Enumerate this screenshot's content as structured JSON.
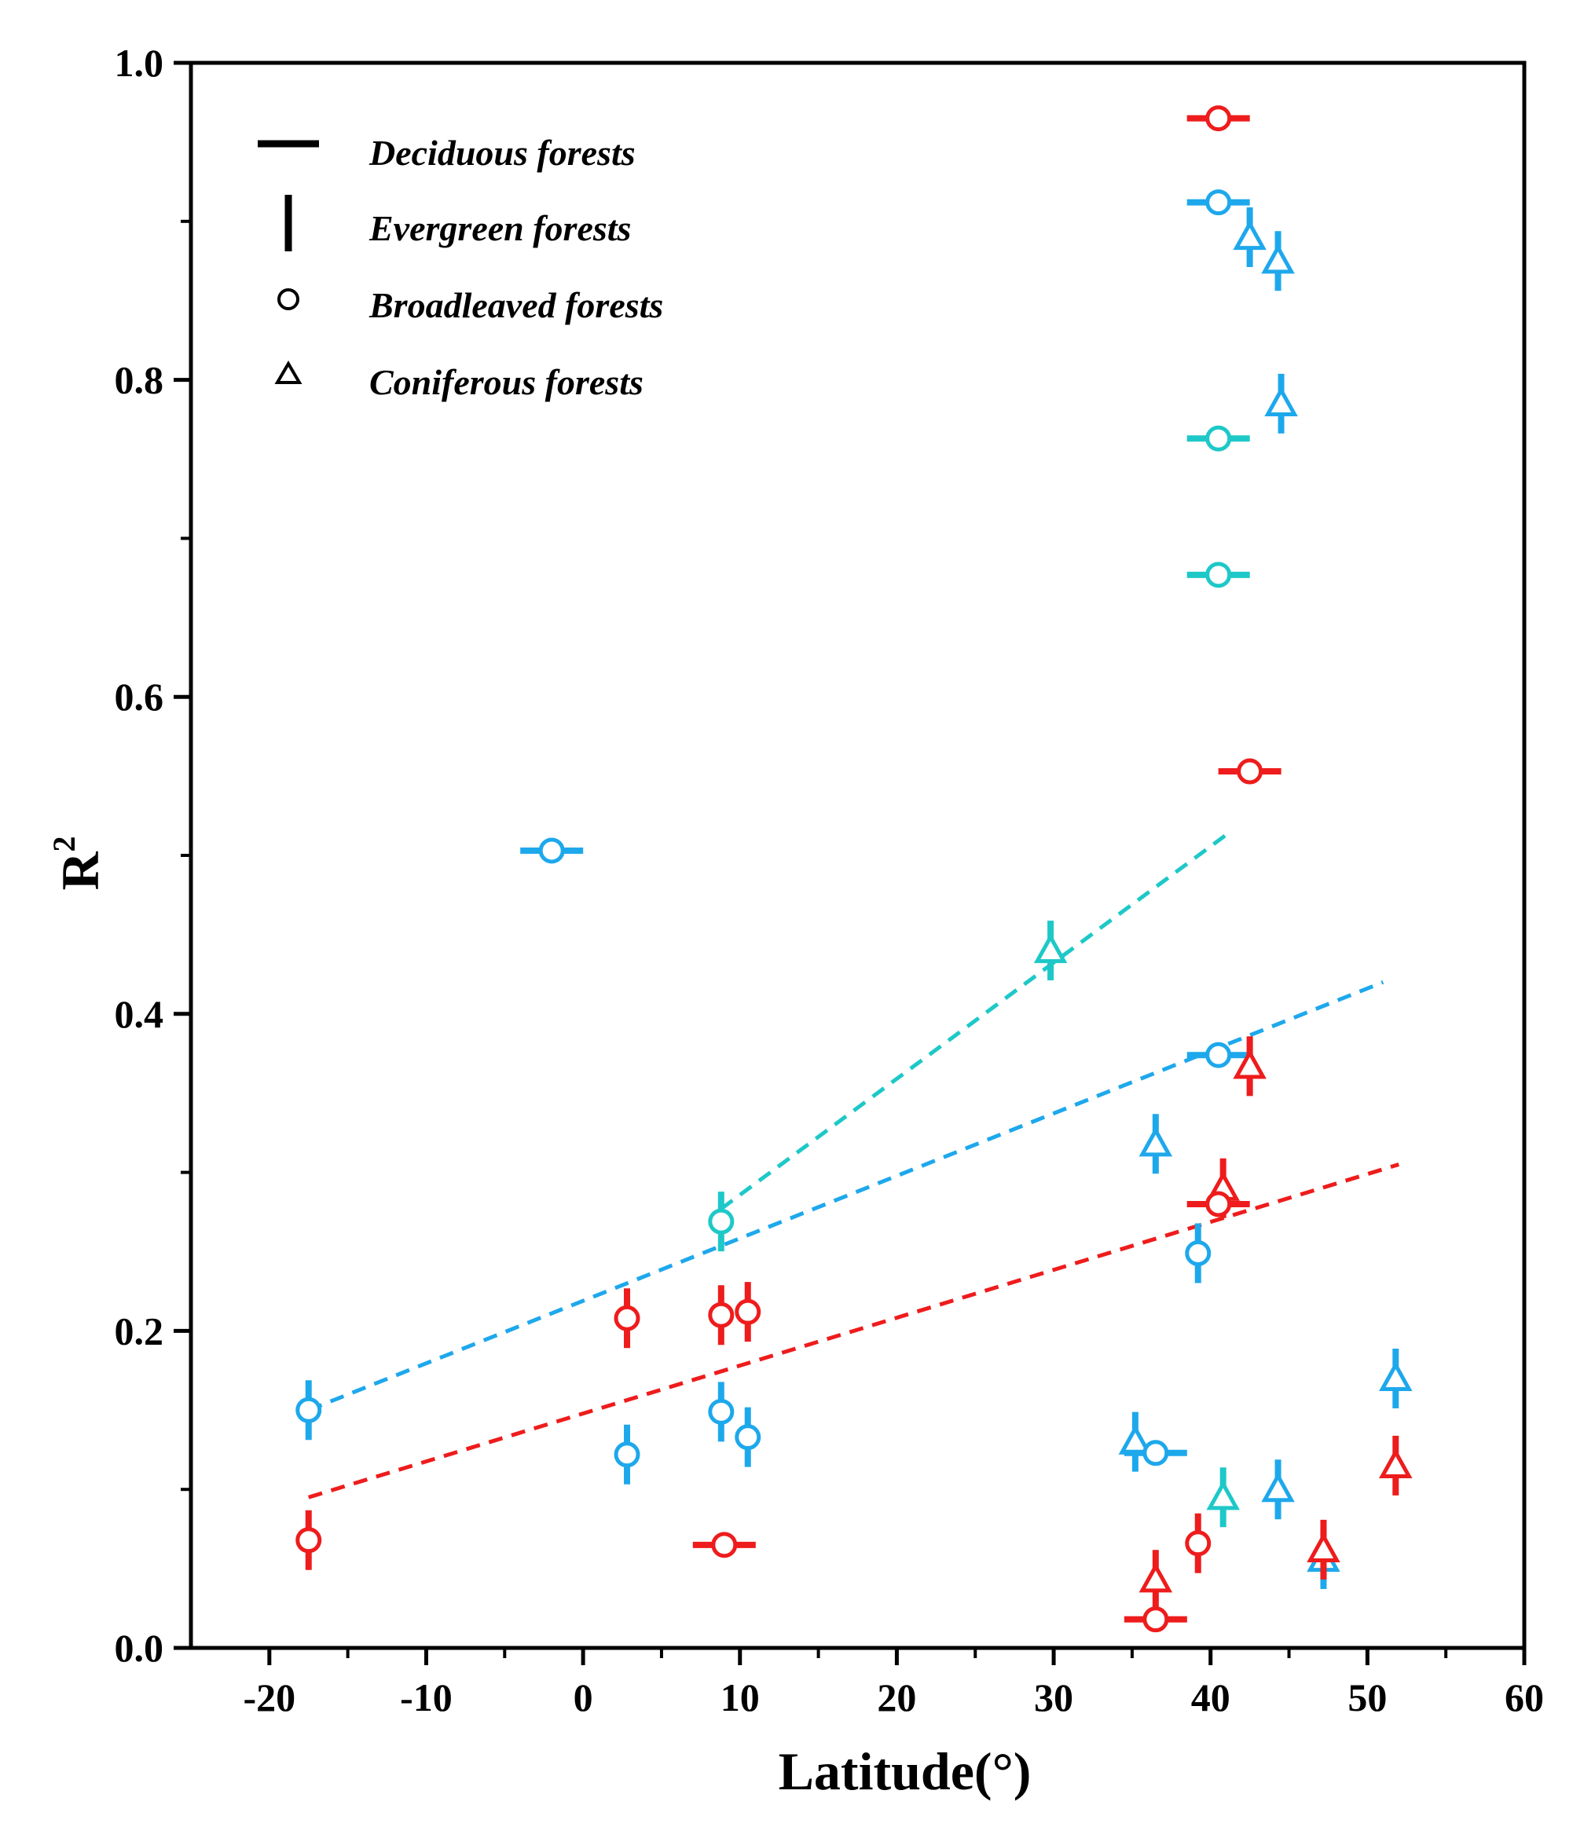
{
  "colors": {
    "red": "#ee1c1c",
    "blue": "#1ea8ec",
    "cyan": "#1ec8c8",
    "axis": "#000000"
  },
  "chart_data": {
    "type": "scatter",
    "title": "",
    "xlabel": "Latitude(°)",
    "ylabel": "R",
    "ylabel_sup": "2",
    "xlim": [
      -25,
      60
    ],
    "ylim": [
      0.0,
      1.0
    ],
    "x_ticks": [
      -20,
      -10,
      0,
      10,
      20,
      30,
      40,
      50,
      60
    ],
    "y_ticks": [
      0.0,
      0.2,
      0.4,
      0.6,
      0.8,
      1.0
    ],
    "x_tick_labels": [
      "-20",
      "-10",
      "0",
      "10",
      "20",
      "30",
      "40",
      "50",
      "60"
    ],
    "y_tick_labels": [
      "0.0",
      "0.2",
      "0.4",
      "0.6",
      "0.8",
      "1.0"
    ],
    "grid": false,
    "legend_position": "top-left",
    "legend": [
      {
        "symbol": "hbar",
        "label": "Deciduous forests"
      },
      {
        "symbol": "vbar",
        "label": "Evergreen forests"
      },
      {
        "symbol": "circle",
        "label": "Broadleaved forests"
      },
      {
        "symbol": "triangle",
        "label": "Coniferous forests"
      }
    ],
    "points": [
      {
        "x": 40.5,
        "y": 0.965,
        "marker": "circle",
        "bar": "h",
        "color": "red"
      },
      {
        "x": 40.5,
        "y": 0.912,
        "marker": "circle",
        "bar": "h",
        "color": "blue"
      },
      {
        "x": 42.5,
        "y": 0.89,
        "marker": "triangle",
        "bar": "v",
        "color": "blue"
      },
      {
        "x": 44.3,
        "y": 0.875,
        "marker": "triangle",
        "bar": "v",
        "color": "blue"
      },
      {
        "x": 44.5,
        "y": 0.785,
        "marker": "triangle",
        "bar": "v",
        "color": "blue"
      },
      {
        "x": 40.5,
        "y": 0.763,
        "marker": "circle",
        "bar": "h",
        "color": "cyan"
      },
      {
        "x": 40.5,
        "y": 0.677,
        "marker": "circle",
        "bar": "h",
        "color": "cyan"
      },
      {
        "x": 42.5,
        "y": 0.553,
        "marker": "circle",
        "bar": "h",
        "color": "red"
      },
      {
        "x": -2.0,
        "y": 0.503,
        "marker": "circle",
        "bar": "h",
        "color": "blue"
      },
      {
        "x": 29.8,
        "y": 0.44,
        "marker": "triangle",
        "bar": "v",
        "color": "cyan"
      },
      {
        "x": 40.5,
        "y": 0.374,
        "marker": "circle",
        "bar": "h",
        "color": "blue"
      },
      {
        "x": 42.5,
        "y": 0.367,
        "marker": "triangle",
        "bar": "v",
        "color": "red"
      },
      {
        "x": 36.5,
        "y": 0.318,
        "marker": "triangle",
        "bar": "v",
        "color": "blue"
      },
      {
        "x": 40.8,
        "y": 0.29,
        "marker": "triangle",
        "bar": "v",
        "color": "red"
      },
      {
        "x": 40.5,
        "y": 0.28,
        "marker": "circle",
        "bar": "h",
        "color": "red"
      },
      {
        "x": 8.8,
        "y": 0.269,
        "marker": "circle",
        "bar": "v",
        "color": "cyan"
      },
      {
        "x": 39.2,
        "y": 0.249,
        "marker": "circle",
        "bar": "v",
        "color": "blue"
      },
      {
        "x": 2.8,
        "y": 0.208,
        "marker": "circle",
        "bar": "v",
        "color": "red"
      },
      {
        "x": 8.8,
        "y": 0.21,
        "marker": "circle",
        "bar": "v",
        "color": "red"
      },
      {
        "x": 10.5,
        "y": 0.212,
        "marker": "circle",
        "bar": "v",
        "color": "red"
      },
      {
        "x": 51.8,
        "y": 0.17,
        "marker": "triangle",
        "bar": "v",
        "color": "blue"
      },
      {
        "x": -17.5,
        "y": 0.15,
        "marker": "circle",
        "bar": "v",
        "color": "blue"
      },
      {
        "x": 8.8,
        "y": 0.149,
        "marker": "circle",
        "bar": "v",
        "color": "blue"
      },
      {
        "x": 10.5,
        "y": 0.133,
        "marker": "circle",
        "bar": "v",
        "color": "blue"
      },
      {
        "x": 2.8,
        "y": 0.122,
        "marker": "circle",
        "bar": "v",
        "color": "blue"
      },
      {
        "x": 35.2,
        "y": 0.13,
        "marker": "triangle",
        "bar": "v",
        "color": "blue"
      },
      {
        "x": 36.5,
        "y": 0.123,
        "marker": "circle",
        "bar": "h",
        "color": "blue"
      },
      {
        "x": 51.8,
        "y": 0.115,
        "marker": "triangle",
        "bar": "v",
        "color": "red"
      },
      {
        "x": 40.8,
        "y": 0.095,
        "marker": "triangle",
        "bar": "v",
        "color": "cyan"
      },
      {
        "x": 44.3,
        "y": 0.1,
        "marker": "triangle",
        "bar": "v",
        "color": "blue"
      },
      {
        "x": -17.5,
        "y": 0.068,
        "marker": "circle",
        "bar": "v",
        "color": "red"
      },
      {
        "x": 9.0,
        "y": 0.065,
        "marker": "circle",
        "bar": "h",
        "color": "red"
      },
      {
        "x": 39.2,
        "y": 0.066,
        "marker": "circle",
        "bar": "v",
        "color": "red"
      },
      {
        "x": 47.2,
        "y": 0.056,
        "marker": "triangle",
        "bar": "v",
        "color": "blue"
      },
      {
        "x": 47.2,
        "y": 0.062,
        "marker": "triangle",
        "bar": "v",
        "color": "red"
      },
      {
        "x": 36.5,
        "y": 0.043,
        "marker": "triangle",
        "bar": "v",
        "color": "red"
      },
      {
        "x": 36.5,
        "y": 0.018,
        "marker": "circle",
        "bar": "h",
        "color": "red"
      }
    ],
    "trend_lines": [
      {
        "name": "cyan-trend",
        "color": "cyan",
        "x": [
          8.8,
          41.0
        ],
        "y": [
          0.277,
          0.513
        ]
      },
      {
        "name": "blue-trend",
        "color": "blue",
        "x": [
          -17.5,
          51.0
        ],
        "y": [
          0.15,
          0.42
        ]
      },
      {
        "name": "red-trend",
        "color": "red",
        "x": [
          -17.5,
          52.0
        ],
        "y": [
          0.095,
          0.305
        ]
      }
    ]
  }
}
